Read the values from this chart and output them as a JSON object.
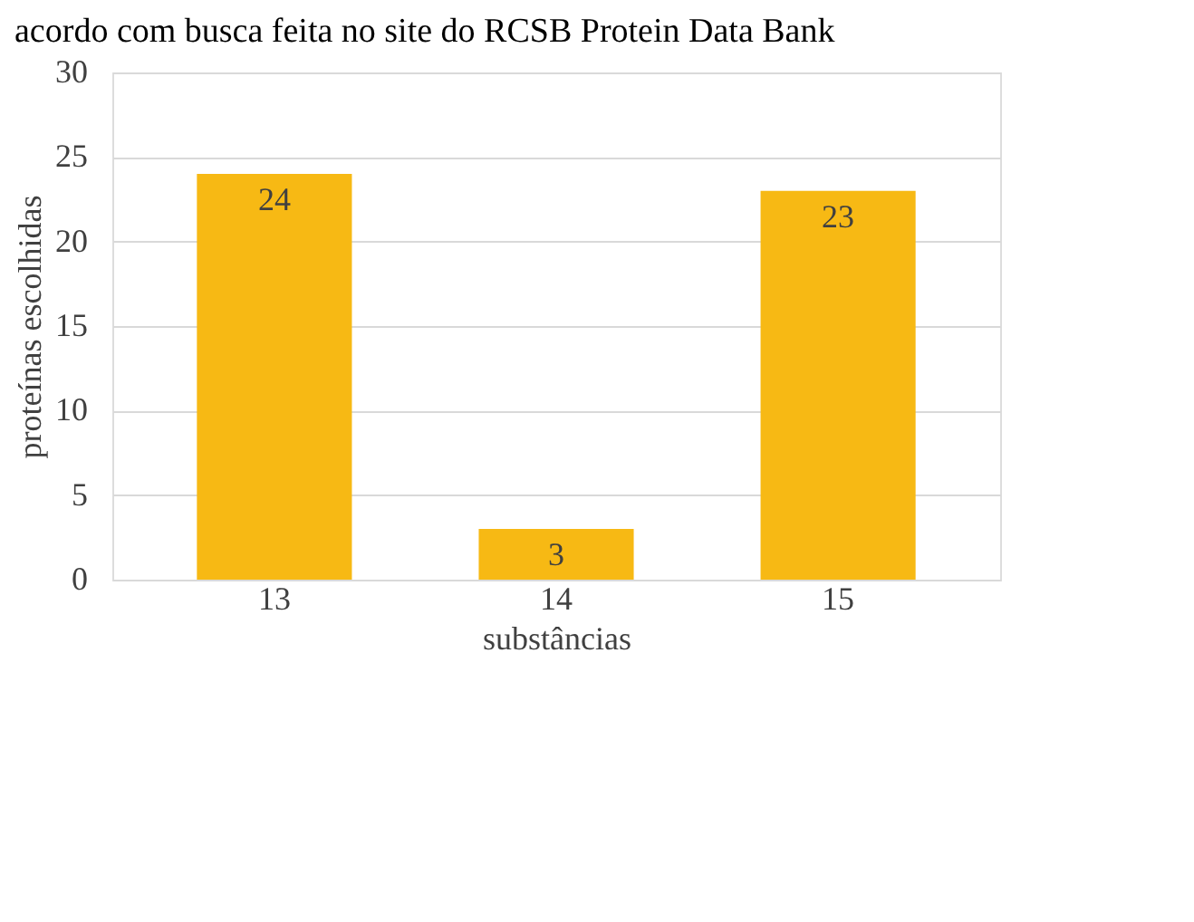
{
  "chart_data": {
    "type": "bar",
    "annotations": [
      "acordo com busca feita no site do RCSB Protein Data Bank"
    ],
    "xlabel": "substâncias",
    "ylabel": "proteínas escolhidas",
    "categories": [
      "13",
      "14",
      "15"
    ],
    "values": [
      24,
      3,
      23
    ],
    "color": "#f7b914",
    "ylim": [
      0,
      30
    ],
    "yticks": [
      0,
      5,
      10,
      15,
      20,
      25,
      30
    ],
    "grid": "y",
    "data_labels": true
  }
}
